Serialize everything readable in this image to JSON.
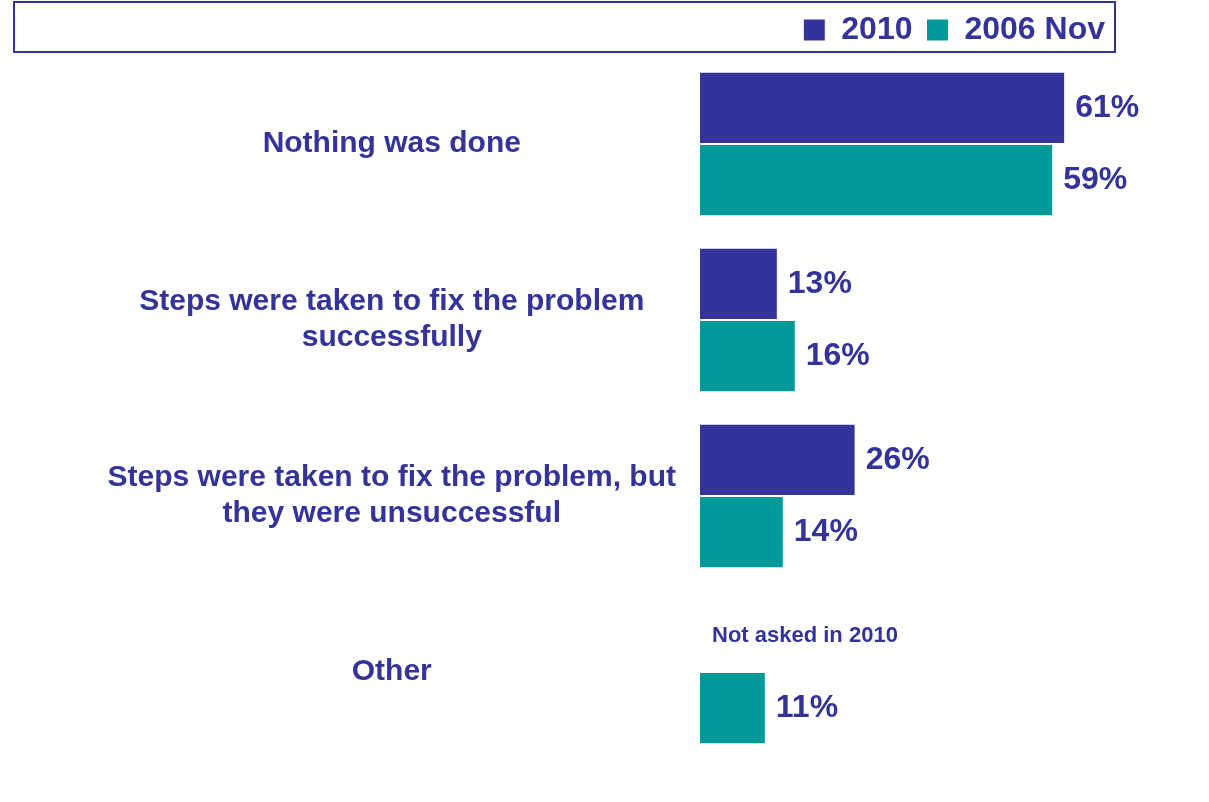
{
  "chart_data": {
    "type": "bar",
    "orientation": "horizontal",
    "categories": [
      "Nothing was done",
      "Steps were taken to fix the problem successfully",
      "Steps were taken to fix the problem, but they were unsuccessful",
      "Other"
    ],
    "series": [
      {
        "name": "2010",
        "color": "#333399",
        "values": [
          61,
          13,
          26,
          null
        ],
        "value_labels": [
          "61%",
          "13%",
          "26%",
          null
        ]
      },
      {
        "name": "2006 Nov",
        "color": "#009999",
        "values": [
          59,
          16,
          14,
          11
        ],
        "value_labels": [
          "59%",
          "16%",
          "14%",
          "11%"
        ]
      }
    ],
    "tick_labels": "y",
    "grid": false,
    "legend": "top right",
    "annotations": [
      "Not asked in 2010"
    ]
  }
}
